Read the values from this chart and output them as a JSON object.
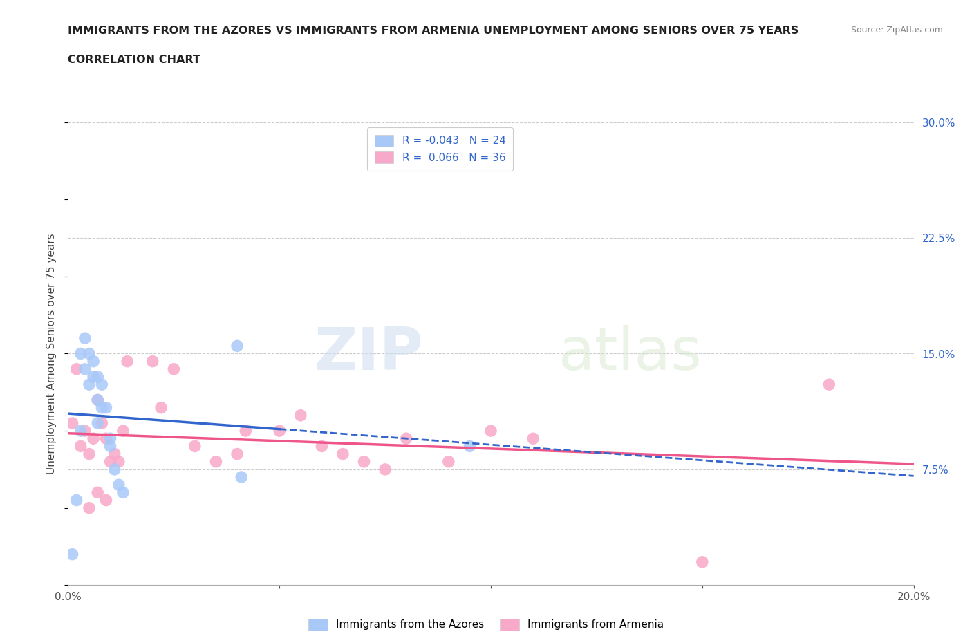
{
  "title_line1": "IMMIGRANTS FROM THE AZORES VS IMMIGRANTS FROM ARMENIA UNEMPLOYMENT AMONG SENIORS OVER 75 YEARS",
  "title_line2": "CORRELATION CHART",
  "source_text": "Source: ZipAtlas.com",
  "ylabel": "Unemployment Among Seniors over 75 years",
  "xlim": [
    0.0,
    0.2
  ],
  "ylim": [
    0.0,
    0.3
  ],
  "xticks": [
    0.0,
    0.05,
    0.1,
    0.15,
    0.2
  ],
  "xticklabels": [
    "0.0%",
    "",
    "",
    "",
    "20.0%"
  ],
  "yticks_right": [
    0.075,
    0.15,
    0.225,
    0.3
  ],
  "ytick_labels_right": [
    "7.5%",
    "15.0%",
    "22.5%",
    "30.0%"
  ],
  "grid_color": "#cccccc",
  "background_color": "#ffffff",
  "watermark_zip": "ZIP",
  "watermark_atlas": "atlas",
  "azores_color": "#a8c8f8",
  "armenia_color": "#f8a8c8",
  "azores_line_color": "#3366cc",
  "armenia_line_color": "#ee5588",
  "legend_R_azores": "-0.043",
  "legend_N_azores": "24",
  "legend_R_armenia": "0.066",
  "legend_N_armenia": "36",
  "azores_x": [
    0.001,
    0.002,
    0.003,
    0.003,
    0.004,
    0.004,
    0.005,
    0.005,
    0.006,
    0.006,
    0.007,
    0.007,
    0.007,
    0.008,
    0.008,
    0.009,
    0.01,
    0.01,
    0.011,
    0.012,
    0.013,
    0.04,
    0.041,
    0.095
  ],
  "azores_y": [
    0.02,
    0.055,
    0.1,
    0.15,
    0.14,
    0.16,
    0.15,
    0.13,
    0.145,
    0.135,
    0.135,
    0.12,
    0.105,
    0.13,
    0.115,
    0.115,
    0.095,
    0.09,
    0.075,
    0.065,
    0.06,
    0.155,
    0.07,
    0.09
  ],
  "armenia_x": [
    0.001,
    0.002,
    0.003,
    0.004,
    0.005,
    0.006,
    0.007,
    0.008,
    0.009,
    0.01,
    0.011,
    0.012,
    0.013,
    0.014,
    0.02,
    0.022,
    0.025,
    0.03,
    0.035,
    0.04,
    0.042,
    0.05,
    0.055,
    0.06,
    0.065,
    0.07,
    0.075,
    0.08,
    0.09,
    0.1,
    0.11,
    0.15,
    0.18,
    0.005,
    0.007,
    0.009
  ],
  "armenia_y": [
    0.105,
    0.14,
    0.09,
    0.1,
    0.085,
    0.095,
    0.12,
    0.105,
    0.095,
    0.08,
    0.085,
    0.08,
    0.1,
    0.145,
    0.145,
    0.115,
    0.14,
    0.09,
    0.08,
    0.085,
    0.1,
    0.1,
    0.11,
    0.09,
    0.085,
    0.08,
    0.075,
    0.095,
    0.08,
    0.1,
    0.095,
    0.015,
    0.13,
    0.05,
    0.06,
    0.055
  ]
}
